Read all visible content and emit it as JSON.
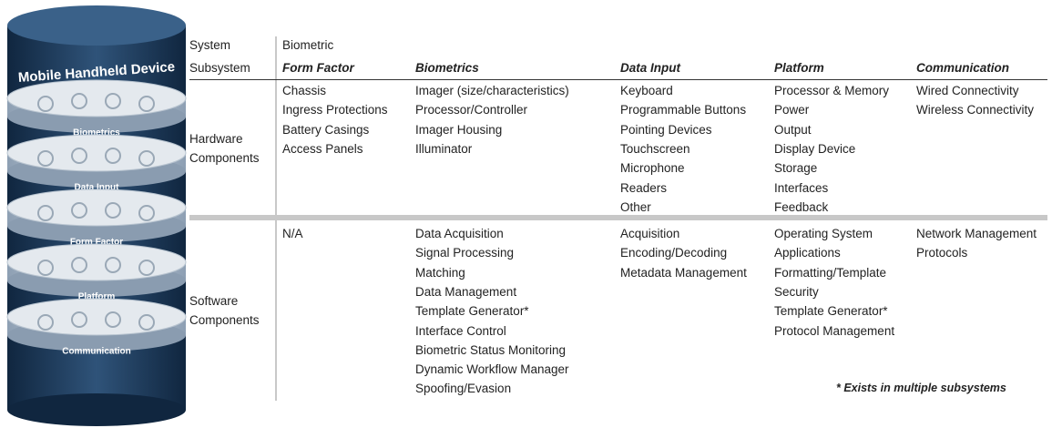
{
  "stack": {
    "title": "Mobile Handheld Device",
    "layers": [
      "Biometrics",
      "Data Input",
      "Form Factor",
      "Platform",
      "Communication"
    ]
  },
  "table": {
    "system": {
      "label": "System",
      "value": "Biometric"
    },
    "subsystem": {
      "label": "Subsystem",
      "columns": [
        "Form Factor",
        "Biometrics",
        "Data Input",
        "Platform",
        "Communication"
      ]
    },
    "rows": [
      {
        "label": [
          "Hardware",
          "Components"
        ],
        "cells": [
          [
            "Chassis",
            "Ingress Protections",
            "Battery Casings",
            "Access Panels"
          ],
          [
            "Imager (size/characteristics)",
            "Processor/Controller",
            "Imager Housing",
            "Illuminator"
          ],
          [
            "Keyboard",
            "Programmable Buttons",
            "Pointing Devices",
            "Touchscreen",
            "Microphone",
            "Readers",
            "Other"
          ],
          [
            "Processor & Memory",
            "Power",
            "Output",
            "Display Device",
            "Storage",
            "Interfaces",
            "Feedback"
          ],
          [
            "Wired Connectivity",
            "Wireless Connectivity"
          ]
        ]
      },
      {
        "label": [
          "Software",
          "Components"
        ],
        "cells": [
          [
            "N/A"
          ],
          [
            "Data Acquisition",
            "Signal Processing",
            "Matching",
            "Data Management",
            "Template Generator*",
            "Interface Control",
            "Biometric Status Monitoring",
            "Dynamic Workflow Manager",
            "Spoofing/Evasion"
          ],
          [
            "Acquisition",
            "Encoding/Decoding",
            "Metadata Management"
          ],
          [
            "Operating System",
            "Applications",
            "Formatting/Template",
            "Security",
            "Template Generator*",
            "Protocol Management"
          ],
          [
            "Network Management",
            "Protocols"
          ]
        ]
      }
    ]
  },
  "footnote": "* Exists in multiple subsystems"
}
